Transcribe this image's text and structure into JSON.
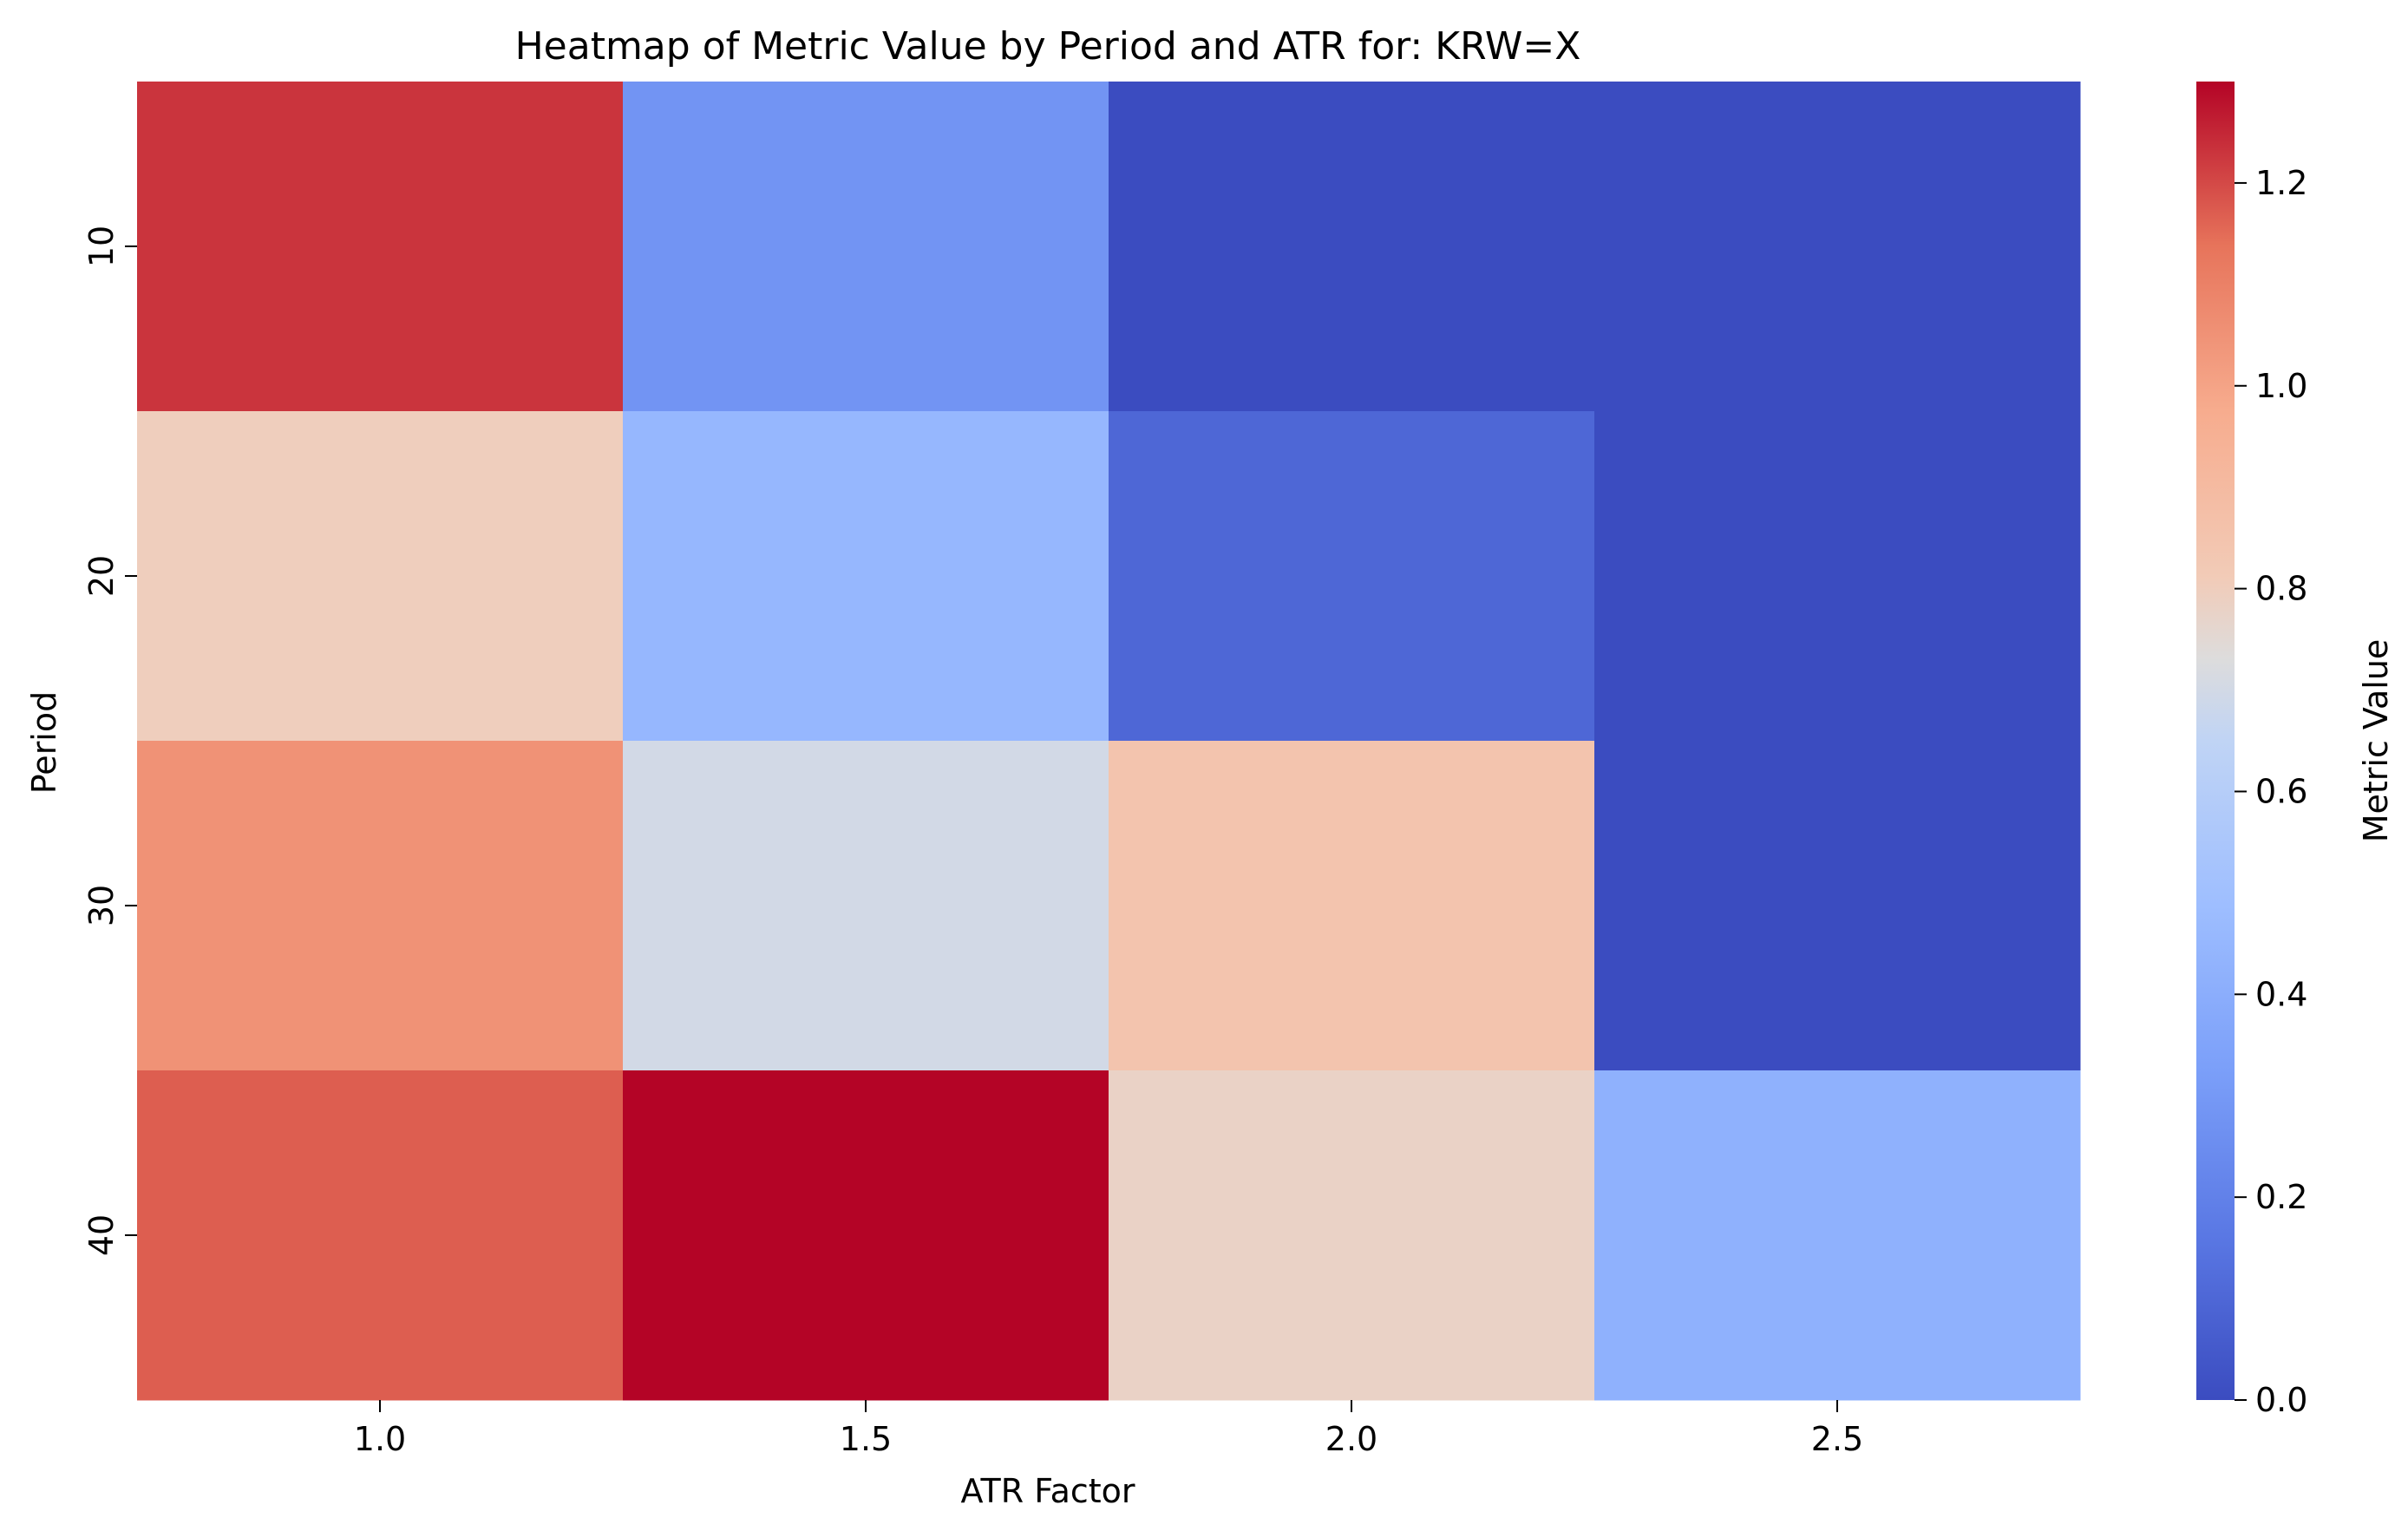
{
  "chart_data": {
    "type": "heatmap",
    "title": "Heatmap of Metric Value by Period and ATR for: KRW=X",
    "xlabel": "ATR Factor",
    "ylabel": "Period",
    "x_categories": [
      "1.0",
      "1.5",
      "2.0",
      "2.5"
    ],
    "y_categories": [
      "10",
      "20",
      "30",
      "40"
    ],
    "values": [
      [
        1.23,
        0.28,
        0.0,
        0.0
      ],
      [
        0.8,
        0.45,
        0.1,
        0.0
      ],
      [
        1.05,
        0.7,
        0.85,
        0.0
      ],
      [
        1.17,
        1.3,
        0.78,
        0.42
      ]
    ],
    "colormap": "coolwarm",
    "colorbar": {
      "label": "Metric Value",
      "range": [
        0.0,
        1.3
      ],
      "ticks": [
        "0.0",
        "0.2",
        "0.4",
        "0.6",
        "0.8",
        "1.0",
        "1.2"
      ]
    }
  }
}
